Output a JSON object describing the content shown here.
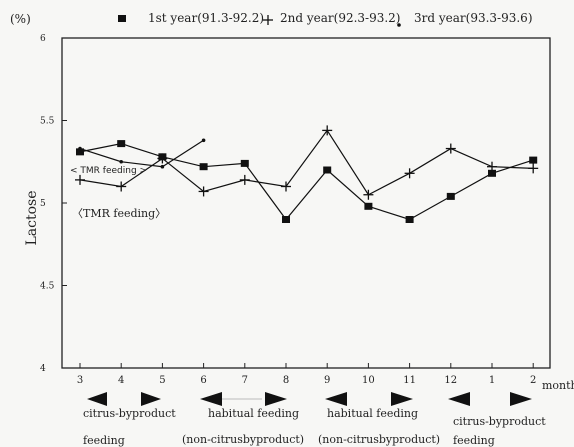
{
  "chart_data": {
    "type": "line",
    "y_unit": "(%)",
    "ylabel": "Lactose",
    "xlabel": "month",
    "ylim": [
      4,
      6
    ],
    "y_ticks": [
      "4",
      "4.5",
      "5",
      "5.5",
      "6"
    ],
    "categories": [
      "3",
      "4",
      "5",
      "6",
      "7",
      "8",
      "9",
      "10",
      "11",
      "12",
      "1",
      "2"
    ],
    "series": [
      {
        "name": "1st year(91.3-92.2)",
        "marker": "square",
        "values": [
          5.31,
          5.36,
          5.28,
          5.22,
          5.24,
          4.9,
          5.2,
          4.98,
          4.9,
          5.04,
          5.18,
          5.26
        ]
      },
      {
        "name": "2nd year(92.3-93.2)",
        "marker": "plus",
        "values": [
          5.14,
          5.1,
          5.27,
          5.07,
          5.14,
          5.1,
          5.44,
          5.05,
          5.18,
          5.33,
          5.22,
          5.21
        ]
      },
      {
        "name": "3rd year(93.3-93.6)",
        "marker": "dot",
        "values": [
          5.33,
          5.25,
          5.22,
          5.38,
          null,
          null,
          null,
          null,
          null,
          null,
          null,
          null
        ]
      }
    ],
    "annotations": [
      "< TMR feeding >",
      "〈TMR feeding〉"
    ],
    "feeding_periods": [
      {
        "line1": "citrus-byproduct",
        "line2": "feeding"
      },
      {
        "line1": "habitual feeding",
        "line2": "(non-citrusbyproduct)"
      },
      {
        "line1": "habitual feeding",
        "line2": "(non-citrusbyproduct)"
      },
      {
        "line1": "citrus-byproduct",
        "line2": "feeding"
      }
    ],
    "legend_position": "top",
    "grid": false
  }
}
